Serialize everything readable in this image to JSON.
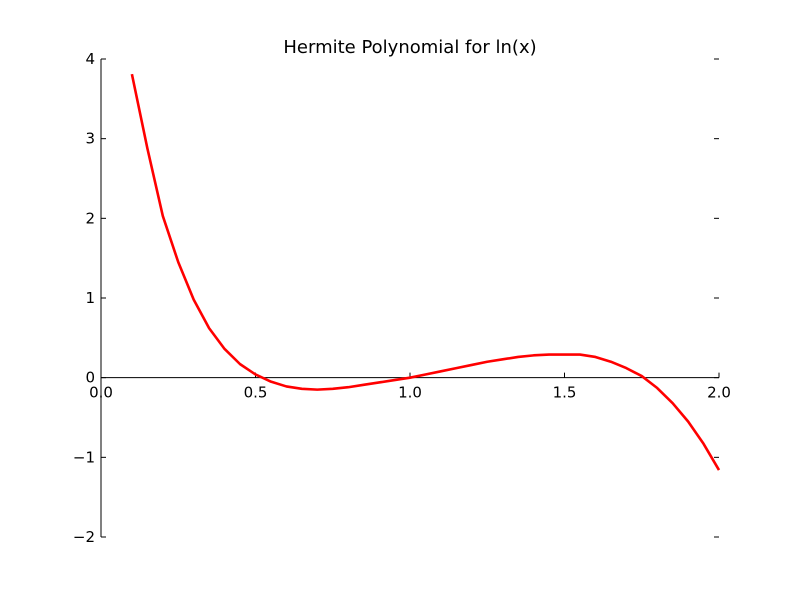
{
  "chart_data": {
    "type": "line",
    "title": "Hermite Polynomial for ln(x)",
    "xlabel": "",
    "ylabel": "",
    "xlim": [
      0.0,
      2.0
    ],
    "ylim": [
      -2,
      4
    ],
    "xticks": [
      "0.0",
      "0.5",
      "1.0",
      "1.5",
      "2.0"
    ],
    "xtick_values": [
      0.0,
      0.5,
      1.0,
      1.5,
      2.0
    ],
    "yticks": [
      "−2",
      "−1",
      "0",
      "1",
      "2",
      "3",
      "4"
    ],
    "ytick_values": [
      -2,
      -1,
      0,
      1,
      2,
      3,
      4
    ],
    "spines": "centered axes (x-axis at y=0, y-axis at x=0)",
    "grid": false,
    "series": [
      {
        "color": "#ff0000",
        "x": [
          0.1,
          0.15,
          0.2,
          0.25,
          0.3,
          0.35,
          0.4,
          0.45,
          0.5,
          0.55,
          0.6,
          0.65,
          0.7,
          0.75,
          0.8,
          0.85,
          0.9,
          0.95,
          1.0,
          1.05,
          1.1,
          1.15,
          1.2,
          1.25,
          1.3,
          1.35,
          1.4,
          1.45,
          1.5,
          1.55,
          1.6,
          1.65,
          1.7,
          1.75,
          1.8,
          1.85,
          1.9,
          1.95,
          2.0
        ],
        "y": [
          3.81,
          2.88,
          2.03,
          1.45,
          0.98,
          0.62,
          0.36,
          0.17,
          0.04,
          -0.05,
          -0.11,
          -0.14,
          -0.15,
          -0.14,
          -0.12,
          -0.09,
          -0.06,
          -0.03,
          0.0,
          0.04,
          0.08,
          0.12,
          0.16,
          0.2,
          0.23,
          0.26,
          0.28,
          0.29,
          0.29,
          0.29,
          0.26,
          0.2,
          0.12,
          0.02,
          -0.13,
          -0.32,
          -0.55,
          -0.83,
          -1.16
        ]
      }
    ]
  }
}
